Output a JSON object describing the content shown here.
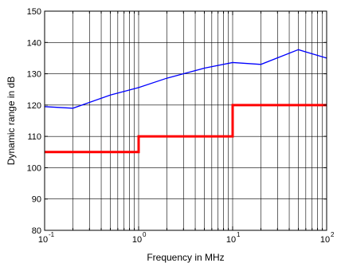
{
  "chart_data": {
    "type": "line",
    "xlabel": "Frequency in MHz",
    "ylabel": "Dynamic range in dB",
    "x_scale": "log",
    "xlim": [
      0.1,
      100
    ],
    "ylim": [
      80,
      150
    ],
    "grid": true,
    "x_ticks": [
      {
        "base": "10",
        "exp": "-1",
        "value": 0.1
      },
      {
        "base": "10",
        "exp": "0",
        "value": 1
      },
      {
        "base": "10",
        "exp": "1",
        "value": 10
      },
      {
        "base": "10",
        "exp": "2",
        "value": 100
      }
    ],
    "y_ticks": [
      "80",
      "90",
      "100",
      "110",
      "120",
      "130",
      "140",
      "150"
    ],
    "series": [
      {
        "color": "#0000ff",
        "style": "thin",
        "x": [
          0.1,
          0.2,
          0.5,
          1,
          2,
          5,
          10,
          20,
          50,
          100
        ],
        "y": [
          119.5,
          119.0,
          123.2,
          125.6,
          128.6,
          131.8,
          133.6,
          133.0,
          137.7,
          135.0
        ]
      },
      {
        "color": "#ff0000",
        "style": "thick-step",
        "x": [
          0.1,
          1,
          1,
          10,
          10,
          100
        ],
        "y": [
          105,
          105,
          110,
          110,
          120,
          120
        ]
      }
    ]
  }
}
